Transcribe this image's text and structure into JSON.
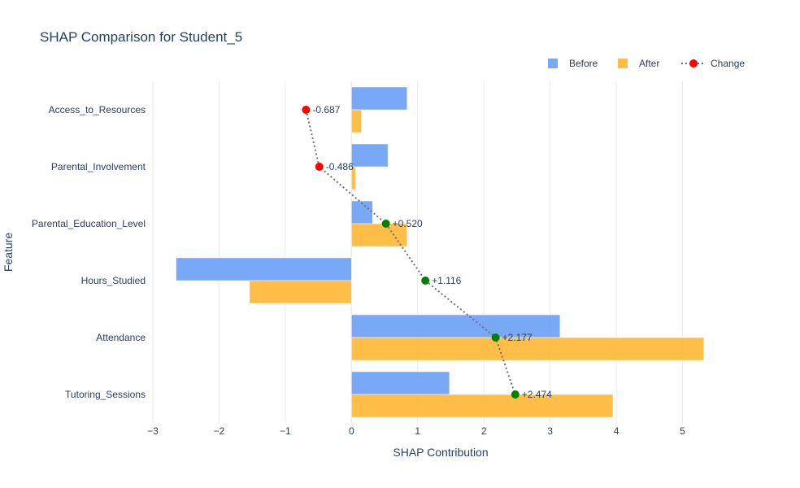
{
  "chart_data": {
    "type": "bar",
    "orientation": "horizontal",
    "title": "SHAP Comparison for Student_5",
    "xlabel": "SHAP Contribution",
    "ylabel": "Feature",
    "xlim": [
      -3,
      5.35
    ],
    "xticks": [
      -3,
      -2,
      -1,
      0,
      1,
      2,
      3,
      4,
      5
    ],
    "xtick_labels": [
      "−3",
      "−2",
      "−1",
      "0",
      "1",
      "2",
      "3",
      "4",
      "5"
    ],
    "grid": true,
    "legend_position": "top-right",
    "categories": [
      "Access_to_Resources",
      "Parental_Involvement",
      "Parental_Education_Level",
      "Hours_Studied",
      "Attendance",
      "Tutoring_Sessions"
    ],
    "series": [
      {
        "name": "Before",
        "type": "bar",
        "color": "#6a9ef5",
        "values": [
          0.84,
          0.55,
          0.32,
          -2.65,
          3.15,
          1.48
        ]
      },
      {
        "name": "After",
        "type": "bar",
        "color": "#ffb733",
        "values": [
          0.15,
          0.06,
          0.84,
          -1.54,
          5.32,
          3.95
        ]
      },
      {
        "name": "Change",
        "type": "line",
        "color": "#6f6f6f",
        "values": [
          -0.687,
          -0.486,
          0.52,
          1.116,
          2.177,
          2.474
        ],
        "labels": [
          "-0.687",
          "-0.486",
          "+0.520",
          "+1.116",
          "+2.177",
          "+2.474"
        ],
        "marker_colors": [
          "#ff0000",
          "#ff0000",
          "#008000",
          "#008000",
          "#008000",
          "#008000"
        ],
        "legend_marker_color": "#ff0000"
      }
    ]
  }
}
